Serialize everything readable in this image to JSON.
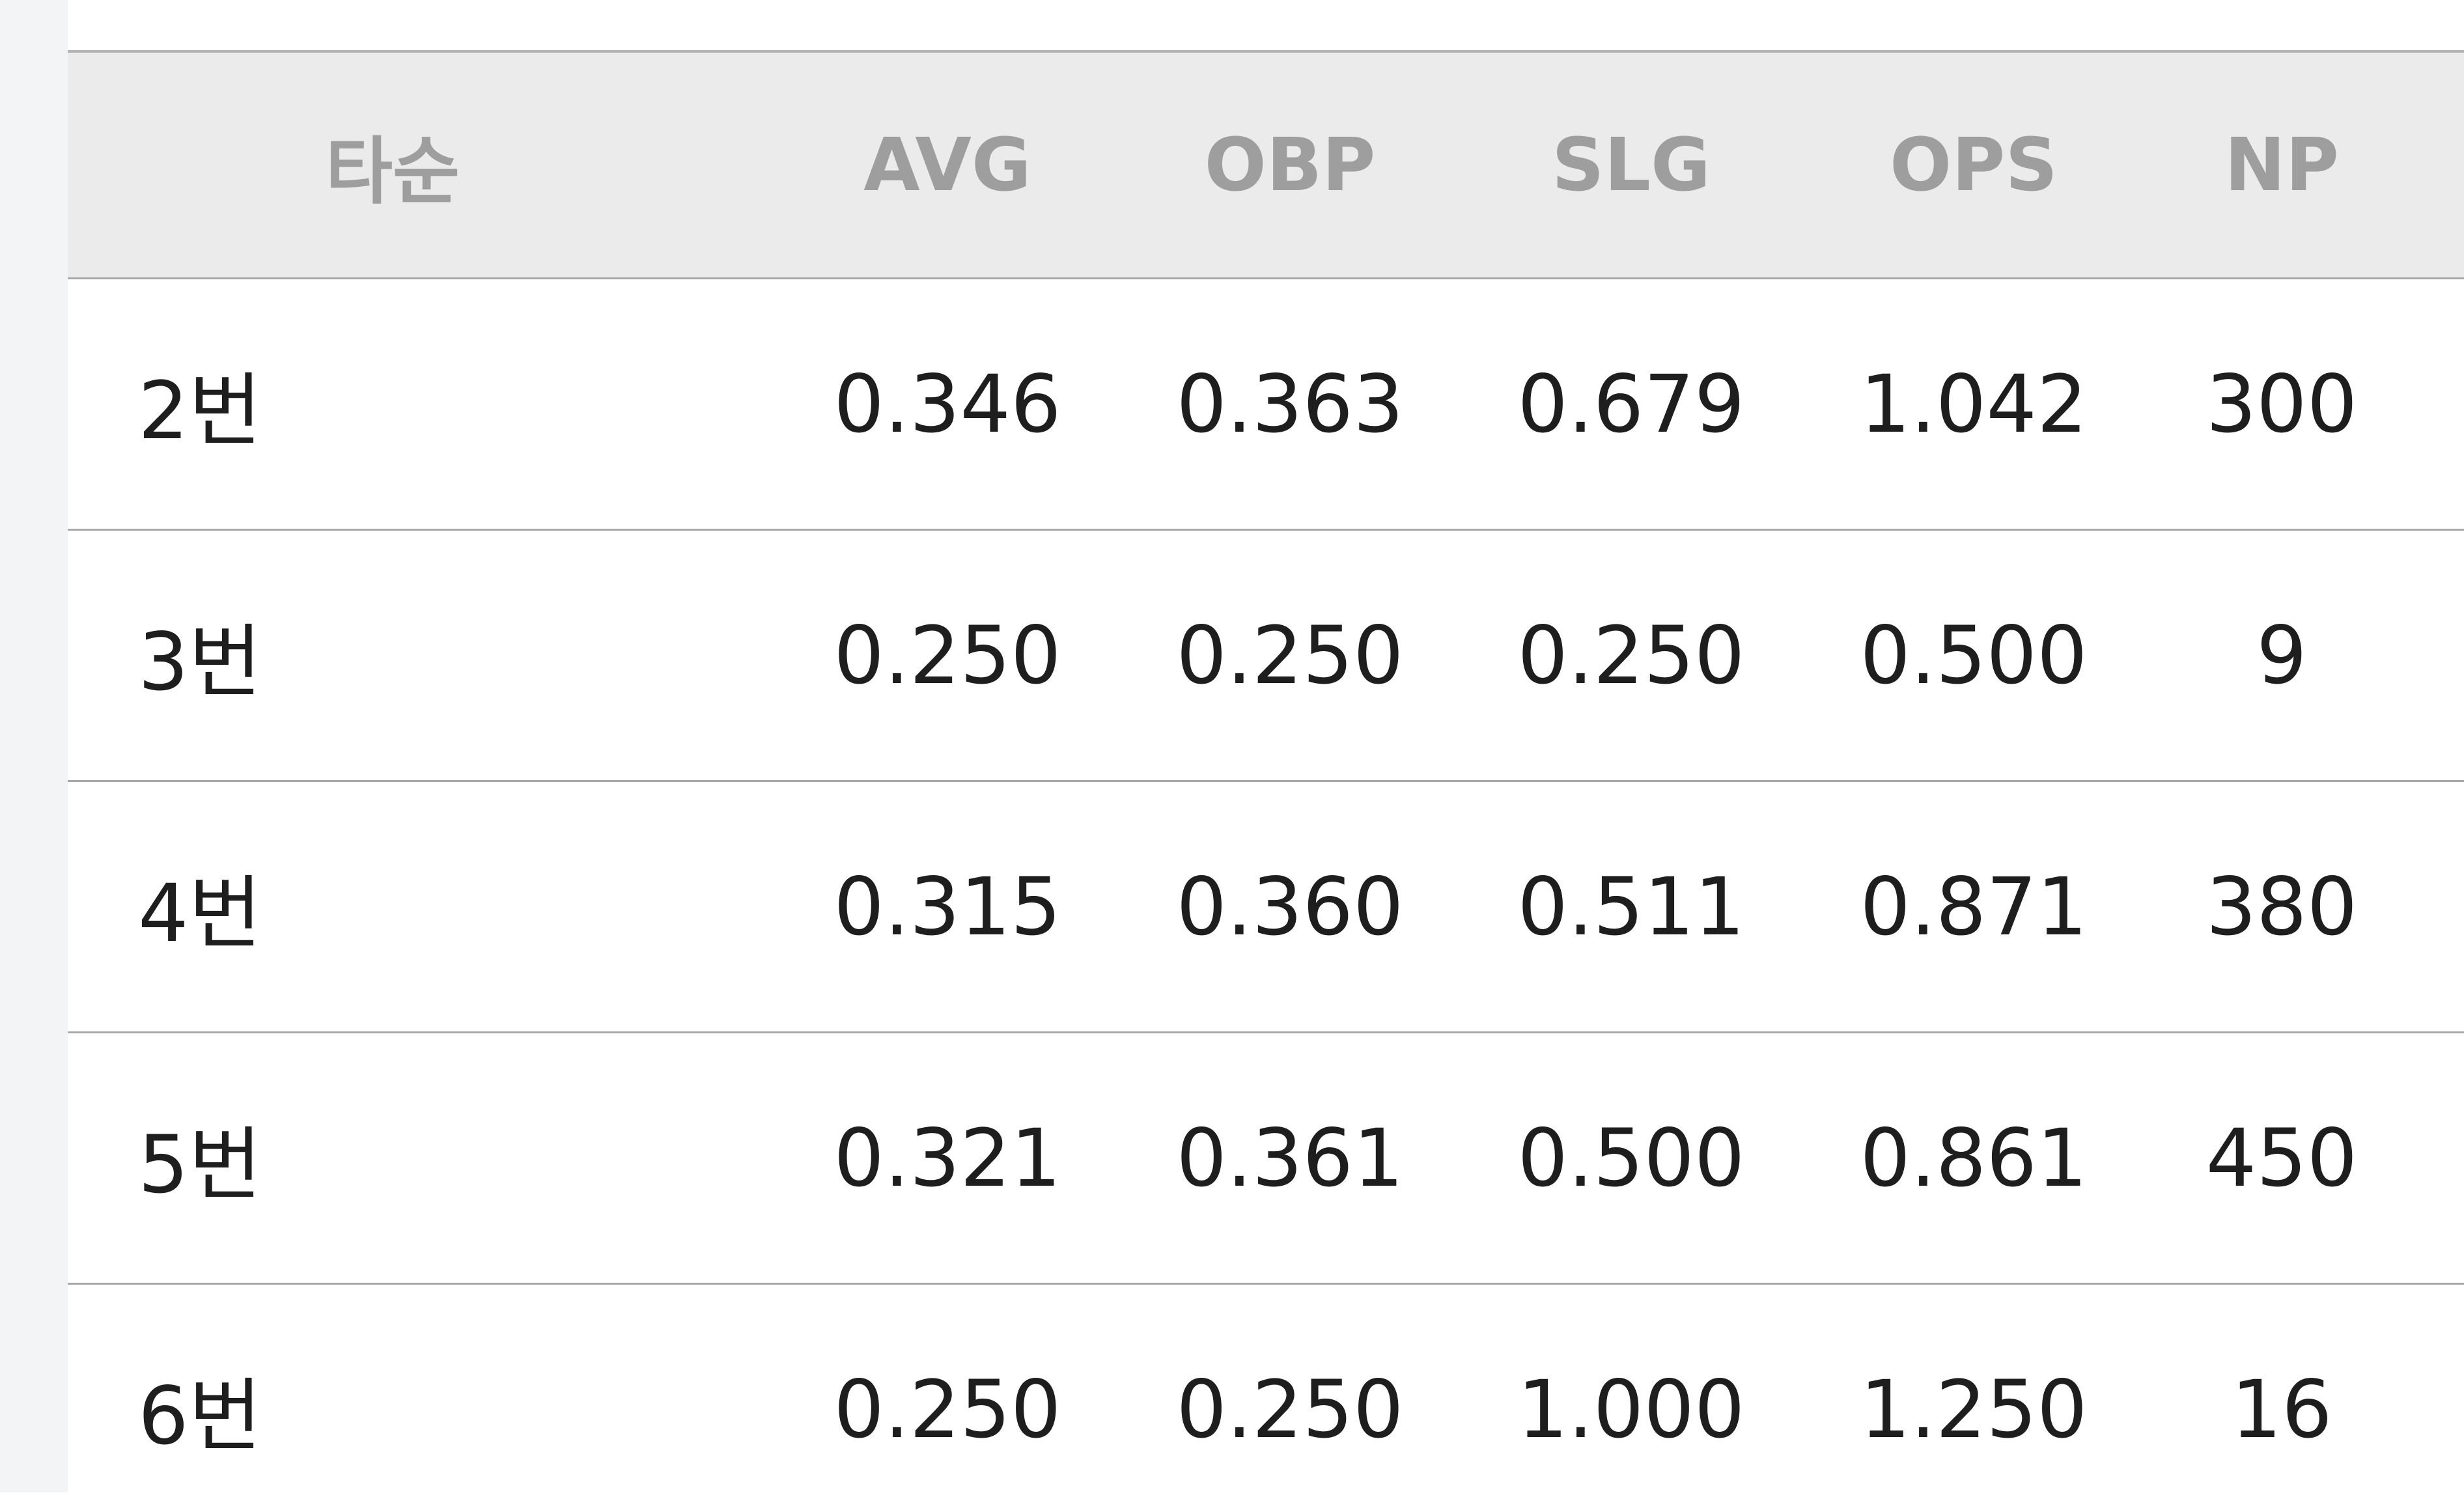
{
  "table": {
    "header": [
      "타순",
      "AVG",
      "OBP",
      "SLG",
      "OPS",
      "NP"
    ],
    "rows": [
      [
        "2번",
        "0.346",
        "0.363",
        "0.679",
        "1.042",
        "300"
      ],
      [
        "3번",
        "0.250",
        "0.250",
        "0.250",
        "0.500",
        "9"
      ],
      [
        "4번",
        "0.315",
        "0.360",
        "0.511",
        "0.871",
        "380"
      ],
      [
        "5번",
        "0.321",
        "0.361",
        "0.500",
        "0.861",
        "450"
      ],
      [
        "6번",
        "0.250",
        "0.250",
        "1.000",
        "1.250",
        "16"
      ]
    ]
  }
}
